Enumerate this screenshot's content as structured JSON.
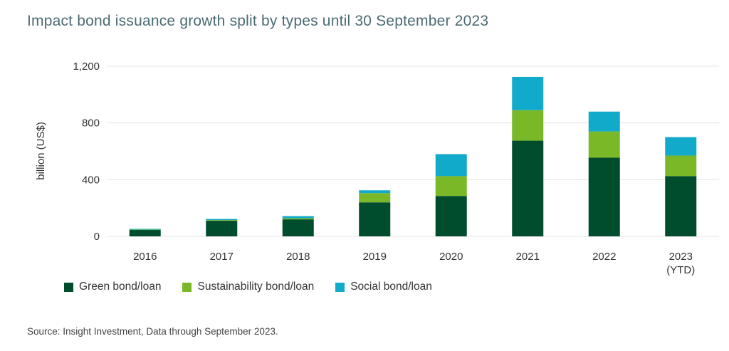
{
  "chart_data": {
    "type": "bar",
    "stacked": true,
    "title": "Impact bond issuance growth split by types until 30 September 2023",
    "ylabel": "billion (US$)",
    "ylim": [
      0,
      1200
    ],
    "yticks": [
      0,
      400,
      800,
      1200
    ],
    "ytick_labels": [
      "0",
      "400",
      "800",
      "1,200"
    ],
    "categories": [
      [
        "2016"
      ],
      [
        "2017"
      ],
      [
        "2018"
      ],
      [
        "2019"
      ],
      [
        "2020"
      ],
      [
        "2021"
      ],
      [
        "2022"
      ],
      [
        "2023",
        "(YTD)"
      ]
    ],
    "series": [
      {
        "name": "Green bond/loan",
        "color": "#004d2e",
        "values": [
          45,
          110,
          120,
          240,
          285,
          675,
          555,
          425
        ]
      },
      {
        "name": "Sustainability bond/loan",
        "color": "#7ab828",
        "values": [
          3,
          5,
          8,
          65,
          140,
          215,
          185,
          145
        ]
      },
      {
        "name": "Social bond/loan",
        "color": "#12aacb",
        "values": [
          5,
          8,
          15,
          20,
          155,
          235,
          140,
          130
        ]
      }
    ],
    "legend_position": "bottom-left",
    "grid": true
  },
  "source": "Source: Insight Investment, Data through September 2023."
}
